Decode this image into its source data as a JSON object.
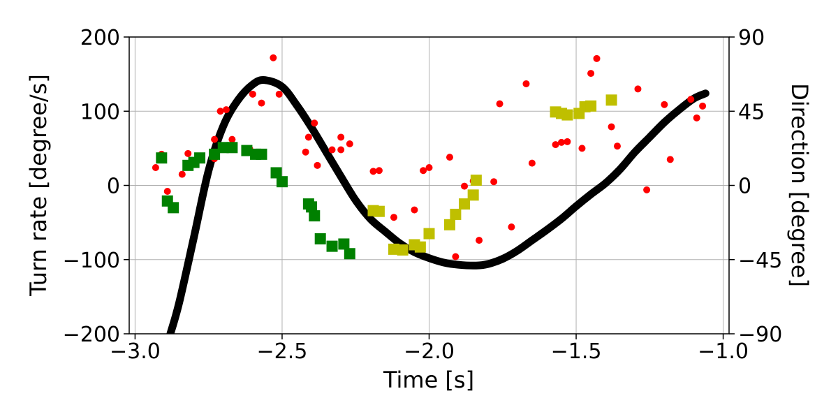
{
  "chart_data": {
    "type": "scatter",
    "xlabel": "Time [s]",
    "ylabel_left": "Turn rate [degree/s]",
    "ylabel_right": "Direction [degree]",
    "xlim": [
      -3.02,
      -0.98
    ],
    "ylim_left": [
      -200,
      200
    ],
    "ylim_right": [
      -90,
      90
    ],
    "x_ticks": [
      -3.0,
      -2.5,
      -2.0,
      -1.5,
      -1.0
    ],
    "x_tick_labels": [
      "−3.0",
      "−2.5",
      "−2.0",
      "−1.5",
      "−1.0"
    ],
    "y_left_ticks": [
      -200,
      -100,
      0,
      100,
      200
    ],
    "y_left_tick_labels": [
      "−200",
      "−100",
      "0",
      "100",
      "200"
    ],
    "y_right_ticks": [
      -90,
      -45,
      0,
      45,
      90
    ],
    "y_right_tick_labels": [
      "−90",
      "−45",
      "0",
      "45",
      "90"
    ],
    "grid": true,
    "series": [
      {
        "kind": "curve",
        "axis": "left",
        "color": "#000000",
        "x": [
          -2.88,
          -2.85,
          -2.8,
          -2.75,
          -2.7,
          -2.65,
          -2.6,
          -2.56,
          -2.5,
          -2.45,
          -2.4,
          -2.35,
          -2.3,
          -2.25,
          -2.2,
          -2.15,
          -2.1,
          -2.05,
          -2.0,
          -1.95,
          -1.9,
          -1.84,
          -1.8,
          -1.75,
          -1.7,
          -1.65,
          -1.6,
          -1.55,
          -1.5,
          -1.45,
          -1.4,
          -1.35,
          -1.3,
          -1.25,
          -1.2,
          -1.15,
          -1.1,
          -1.06
        ],
        "y": [
          -200,
          -158,
          -70,
          20,
          80,
          115,
          136,
          142,
          133,
          108,
          78,
          45,
          12,
          -20,
          -45,
          -62,
          -78,
          -90,
          -98,
          -104,
          -107,
          -108,
          -106,
          -99,
          -88,
          -74,
          -60,
          -45,
          -28,
          -12,
          3,
          22,
          45,
          65,
          85,
          102,
          117,
          124
        ]
      },
      {
        "kind": "dots",
        "axis": "left",
        "color": "#ff0000",
        "points": [
          [
            -2.93,
            24
          ],
          [
            -2.91,
            42
          ],
          [
            -2.89,
            -8
          ],
          [
            -2.84,
            15
          ],
          [
            -2.82,
            43
          ],
          [
            -2.73,
            62
          ],
          [
            -2.73,
            36
          ],
          [
            -2.71,
            100
          ],
          [
            -2.69,
            102
          ],
          [
            -2.67,
            62
          ],
          [
            -2.61,
            49
          ],
          [
            -2.6,
            123
          ],
          [
            -2.57,
            111
          ],
          [
            -2.53,
            172
          ],
          [
            -2.51,
            123
          ],
          [
            -2.42,
            45
          ],
          [
            -2.41,
            65
          ],
          [
            -2.39,
            84
          ],
          [
            -2.38,
            27
          ],
          [
            -2.33,
            48
          ],
          [
            -2.3,
            65
          ],
          [
            -2.3,
            48
          ],
          [
            -2.27,
            56
          ],
          [
            -2.19,
            19
          ],
          [
            -2.17,
            20
          ],
          [
            -2.12,
            -43
          ],
          [
            -2.05,
            -33
          ],
          [
            -2.02,
            20
          ],
          [
            -2.0,
            24
          ],
          [
            -1.93,
            38
          ],
          [
            -1.91,
            -96
          ],
          [
            -1.88,
            -1
          ],
          [
            -1.85,
            6
          ],
          [
            -1.83,
            -74
          ],
          [
            -1.78,
            5
          ],
          [
            -1.76,
            110
          ],
          [
            -1.72,
            -56
          ],
          [
            -1.67,
            137
          ],
          [
            -1.65,
            30
          ],
          [
            -1.57,
            55
          ],
          [
            -1.55,
            58
          ],
          [
            -1.53,
            59
          ],
          [
            -1.48,
            50
          ],
          [
            -1.45,
            151
          ],
          [
            -1.43,
            171
          ],
          [
            -1.38,
            79
          ],
          [
            -1.36,
            53
          ],
          [
            -1.29,
            130
          ],
          [
            -1.26,
            -6
          ],
          [
            -1.2,
            109
          ],
          [
            -1.18,
            35
          ],
          [
            -1.11,
            116
          ],
          [
            -1.09,
            91
          ],
          [
            -1.07,
            107
          ]
        ]
      },
      {
        "kind": "squares",
        "axis": "left",
        "color": "#008000",
        "points": [
          [
            -2.91,
            37
          ],
          [
            -2.89,
            -21
          ],
          [
            -2.87,
            -30
          ],
          [
            -2.82,
            27
          ],
          [
            -2.8,
            31
          ],
          [
            -2.78,
            37
          ],
          [
            -2.73,
            42
          ],
          [
            -2.7,
            51
          ],
          [
            -2.67,
            51
          ],
          [
            -2.62,
            47
          ],
          [
            -2.59,
            42
          ],
          [
            -2.57,
            42
          ],
          [
            -2.52,
            17
          ],
          [
            -2.5,
            5
          ],
          [
            -2.41,
            -25
          ],
          [
            -2.4,
            -29
          ],
          [
            -2.39,
            -41
          ],
          [
            -2.37,
            -72
          ],
          [
            -2.33,
            -82
          ],
          [
            -2.29,
            -79
          ],
          [
            -2.27,
            -92
          ]
        ]
      },
      {
        "kind": "squares",
        "axis": "left",
        "color": "#bfbf00",
        "points": [
          [
            -2.19,
            -34
          ],
          [
            -2.17,
            -35
          ],
          [
            -2.12,
            -86
          ],
          [
            -2.09,
            -87
          ],
          [
            -2.05,
            -80
          ],
          [
            -2.03,
            -83
          ],
          [
            -2.0,
            -65
          ],
          [
            -1.93,
            -53
          ],
          [
            -1.91,
            -39
          ],
          [
            -1.88,
            -25
          ],
          [
            -1.85,
            -13
          ],
          [
            -1.84,
            7
          ],
          [
            -1.57,
            99
          ],
          [
            -1.55,
            97
          ],
          [
            -1.53,
            95
          ],
          [
            -1.49,
            97
          ],
          [
            -1.47,
            106
          ],
          [
            -1.45,
            107
          ],
          [
            -1.38,
            115
          ]
        ]
      }
    ]
  }
}
